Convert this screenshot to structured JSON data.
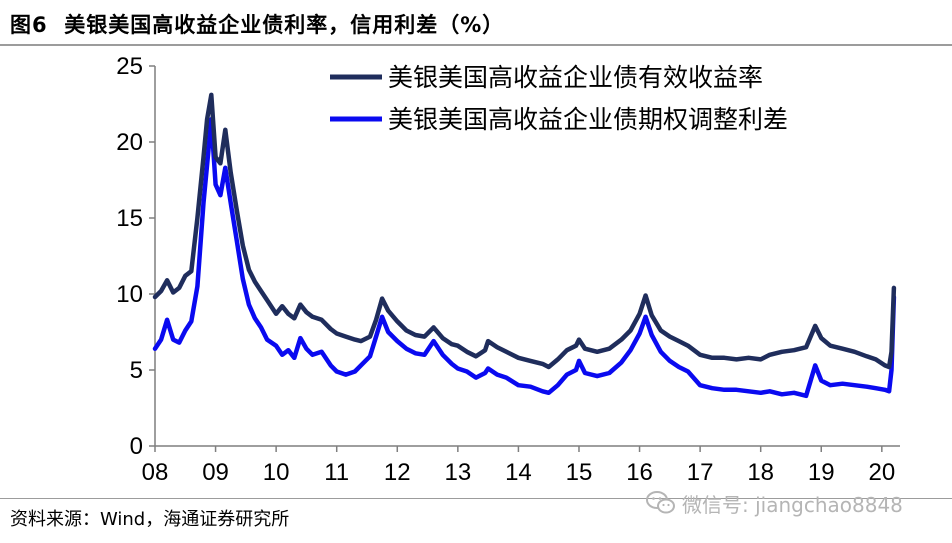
{
  "figure": {
    "label": "图6",
    "title": "美银美国高收益企业债利率，信用利差（%）"
  },
  "source": "资料来源：Wind，海通证券研究所",
  "watermark": {
    "icon": "wechat-icon",
    "text": "微信号: jiangchao8848",
    "color": "#b5b5b5"
  },
  "chart_data": {
    "type": "line",
    "title": "",
    "xlabel": "",
    "ylabel": "",
    "xlim": [
      2008.0,
      2020.3
    ],
    "ylim": [
      0,
      25
    ],
    "yticks": [
      0,
      5,
      10,
      15,
      20,
      25
    ],
    "xticks": [
      2008,
      2009,
      2010,
      2011,
      2012,
      2013,
      2014,
      2015,
      2016,
      2017,
      2018,
      2019,
      2020
    ],
    "xtick_labels": [
      "08",
      "09",
      "10",
      "11",
      "12",
      "13",
      "14",
      "15",
      "16",
      "17",
      "18",
      "19",
      "20"
    ],
    "grid": false,
    "legend": "top-center",
    "series": [
      {
        "name": "美银美国高收益企业债有效收益率",
        "color": "#1f2d5c",
        "points": [
          [
            2008.0,
            9.8
          ],
          [
            2008.1,
            10.2
          ],
          [
            2008.2,
            10.9
          ],
          [
            2008.3,
            10.1
          ],
          [
            2008.4,
            10.4
          ],
          [
            2008.5,
            11.2
          ],
          [
            2008.6,
            11.5
          ],
          [
            2008.7,
            15.0
          ],
          [
            2008.8,
            19.0
          ],
          [
            2008.86,
            21.5
          ],
          [
            2008.93,
            23.1
          ],
          [
            2009.0,
            19.0
          ],
          [
            2009.08,
            18.6
          ],
          [
            2009.16,
            20.8
          ],
          [
            2009.25,
            18.0
          ],
          [
            2009.35,
            15.5
          ],
          [
            2009.45,
            13.2
          ],
          [
            2009.55,
            11.6
          ],
          [
            2009.65,
            10.8
          ],
          [
            2009.75,
            10.2
          ],
          [
            2009.85,
            9.6
          ],
          [
            2010.0,
            8.7
          ],
          [
            2010.1,
            9.2
          ],
          [
            2010.2,
            8.7
          ],
          [
            2010.3,
            8.4
          ],
          [
            2010.4,
            9.3
          ],
          [
            2010.5,
            8.8
          ],
          [
            2010.6,
            8.5
          ],
          [
            2010.75,
            8.3
          ],
          [
            2010.9,
            7.7
          ],
          [
            2011.0,
            7.4
          ],
          [
            2011.15,
            7.2
          ],
          [
            2011.3,
            7.0
          ],
          [
            2011.4,
            6.9
          ],
          [
            2011.55,
            7.2
          ],
          [
            2011.65,
            8.3
          ],
          [
            2011.75,
            9.7
          ],
          [
            2011.85,
            8.9
          ],
          [
            2012.0,
            8.2
          ],
          [
            2012.15,
            7.6
          ],
          [
            2012.3,
            7.3
          ],
          [
            2012.45,
            7.2
          ],
          [
            2012.6,
            7.8
          ],
          [
            2012.75,
            7.1
          ],
          [
            2012.9,
            6.7
          ],
          [
            2013.0,
            6.6
          ],
          [
            2013.15,
            6.2
          ],
          [
            2013.3,
            5.9
          ],
          [
            2013.45,
            6.3
          ],
          [
            2013.5,
            6.9
          ],
          [
            2013.65,
            6.5
          ],
          [
            2013.8,
            6.2
          ],
          [
            2014.0,
            5.8
          ],
          [
            2014.2,
            5.6
          ],
          [
            2014.4,
            5.4
          ],
          [
            2014.5,
            5.2
          ],
          [
            2014.65,
            5.7
          ],
          [
            2014.8,
            6.3
          ],
          [
            2014.95,
            6.6
          ],
          [
            2015.0,
            7.0
          ],
          [
            2015.1,
            6.4
          ],
          [
            2015.3,
            6.2
          ],
          [
            2015.5,
            6.4
          ],
          [
            2015.7,
            7.0
          ],
          [
            2015.85,
            7.6
          ],
          [
            2016.0,
            8.7
          ],
          [
            2016.1,
            9.9
          ],
          [
            2016.2,
            8.6
          ],
          [
            2016.35,
            7.6
          ],
          [
            2016.5,
            7.2
          ],
          [
            2016.65,
            6.9
          ],
          [
            2016.8,
            6.6
          ],
          [
            2017.0,
            6.0
          ],
          [
            2017.2,
            5.8
          ],
          [
            2017.4,
            5.8
          ],
          [
            2017.6,
            5.7
          ],
          [
            2017.8,
            5.8
          ],
          [
            2018.0,
            5.7
          ],
          [
            2018.15,
            6.0
          ],
          [
            2018.35,
            6.2
          ],
          [
            2018.55,
            6.3
          ],
          [
            2018.75,
            6.5
          ],
          [
            2018.9,
            7.9
          ],
          [
            2019.0,
            7.1
          ],
          [
            2019.15,
            6.6
          ],
          [
            2019.35,
            6.4
          ],
          [
            2019.55,
            6.2
          ],
          [
            2019.75,
            5.9
          ],
          [
            2019.9,
            5.7
          ],
          [
            2020.05,
            5.3
          ],
          [
            2020.12,
            5.2
          ],
          [
            2020.16,
            6.2
          ],
          [
            2020.2,
            10.4
          ]
        ]
      },
      {
        "name": "美银美国高收益企业债期权调整利差",
        "color": "#0a0af0",
        "points": [
          [
            2008.0,
            6.4
          ],
          [
            2008.1,
            7.0
          ],
          [
            2008.2,
            8.3
          ],
          [
            2008.3,
            7.0
          ],
          [
            2008.4,
            6.8
          ],
          [
            2008.5,
            7.6
          ],
          [
            2008.6,
            8.2
          ],
          [
            2008.7,
            10.5
          ],
          [
            2008.8,
            16.0
          ],
          [
            2008.86,
            18.5
          ],
          [
            2008.93,
            21.5
          ],
          [
            2009.0,
            17.2
          ],
          [
            2009.08,
            16.5
          ],
          [
            2009.16,
            18.3
          ],
          [
            2009.25,
            16.0
          ],
          [
            2009.35,
            13.5
          ],
          [
            2009.45,
            11.0
          ],
          [
            2009.55,
            9.3
          ],
          [
            2009.65,
            8.4
          ],
          [
            2009.75,
            7.8
          ],
          [
            2009.85,
            7.0
          ],
          [
            2010.0,
            6.6
          ],
          [
            2010.1,
            6.0
          ],
          [
            2010.2,
            6.3
          ],
          [
            2010.3,
            5.8
          ],
          [
            2010.4,
            7.1
          ],
          [
            2010.5,
            6.4
          ],
          [
            2010.6,
            6.0
          ],
          [
            2010.75,
            6.2
          ],
          [
            2010.9,
            5.3
          ],
          [
            2011.0,
            4.9
          ],
          [
            2011.15,
            4.7
          ],
          [
            2011.3,
            4.9
          ],
          [
            2011.4,
            5.3
          ],
          [
            2011.55,
            5.9
          ],
          [
            2011.65,
            7.2
          ],
          [
            2011.75,
            8.5
          ],
          [
            2011.85,
            7.5
          ],
          [
            2012.0,
            6.9
          ],
          [
            2012.15,
            6.4
          ],
          [
            2012.3,
            6.1
          ],
          [
            2012.45,
            6.0
          ],
          [
            2012.6,
            6.9
          ],
          [
            2012.75,
            6.0
          ],
          [
            2012.9,
            5.4
          ],
          [
            2013.0,
            5.1
          ],
          [
            2013.15,
            4.9
          ],
          [
            2013.3,
            4.5
          ],
          [
            2013.45,
            4.8
          ],
          [
            2013.5,
            5.1
          ],
          [
            2013.65,
            4.7
          ],
          [
            2013.8,
            4.5
          ],
          [
            2014.0,
            4.0
          ],
          [
            2014.2,
            3.9
          ],
          [
            2014.4,
            3.6
          ],
          [
            2014.5,
            3.5
          ],
          [
            2014.65,
            4.0
          ],
          [
            2014.8,
            4.7
          ],
          [
            2014.95,
            5.0
          ],
          [
            2015.0,
            5.6
          ],
          [
            2015.1,
            4.8
          ],
          [
            2015.3,
            4.6
          ],
          [
            2015.5,
            4.8
          ],
          [
            2015.7,
            5.5
          ],
          [
            2015.85,
            6.3
          ],
          [
            2016.0,
            7.4
          ],
          [
            2016.1,
            8.5
          ],
          [
            2016.2,
            7.3
          ],
          [
            2016.35,
            6.2
          ],
          [
            2016.5,
            5.6
          ],
          [
            2016.65,
            5.2
          ],
          [
            2016.8,
            4.9
          ],
          [
            2017.0,
            4.0
          ],
          [
            2017.2,
            3.8
          ],
          [
            2017.4,
            3.7
          ],
          [
            2017.6,
            3.7
          ],
          [
            2017.8,
            3.6
          ],
          [
            2018.0,
            3.5
          ],
          [
            2018.15,
            3.6
          ],
          [
            2018.35,
            3.4
          ],
          [
            2018.55,
            3.5
          ],
          [
            2018.75,
            3.3
          ],
          [
            2018.9,
            5.3
          ],
          [
            2019.0,
            4.3
          ],
          [
            2019.15,
            4.0
          ],
          [
            2019.35,
            4.1
          ],
          [
            2019.55,
            4.0
          ],
          [
            2019.75,
            3.9
          ],
          [
            2019.9,
            3.8
          ],
          [
            2020.05,
            3.7
          ],
          [
            2020.12,
            3.6
          ],
          [
            2020.16,
            5.0
          ],
          [
            2020.2,
            9.8
          ]
        ]
      }
    ]
  }
}
